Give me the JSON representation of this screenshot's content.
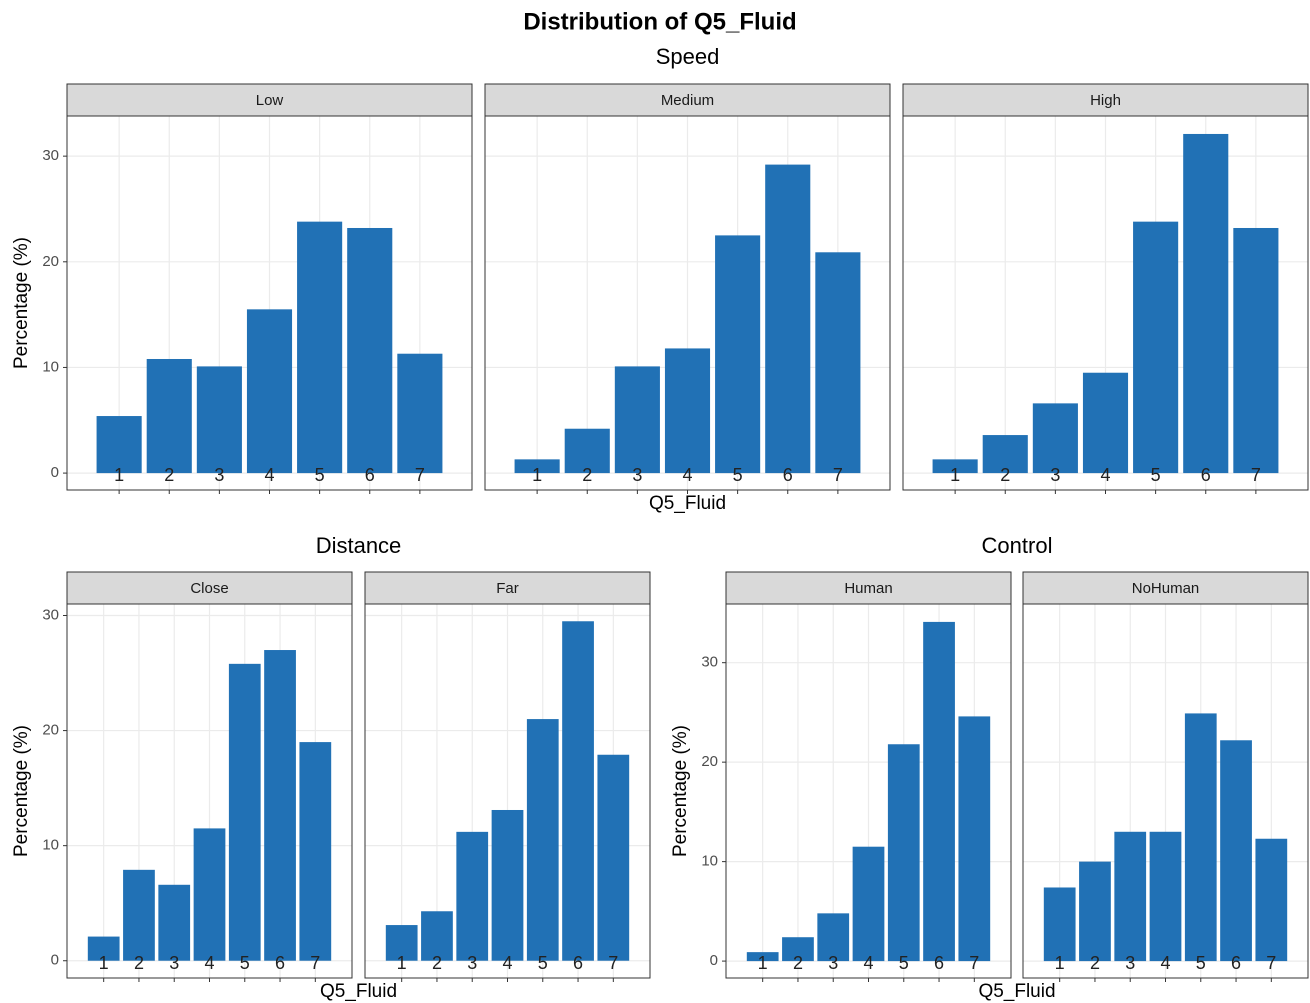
{
  "title": "Distribution of Q5_Fluid",
  "chart_data": [
    {
      "type": "bar",
      "title": "Speed",
      "x_label": "Q5_Fluid",
      "y_label": "Percentage (%)",
      "color": "#2171b5",
      "grid": true,
      "categories": [
        "1",
        "2",
        "3",
        "4",
        "5",
        "6",
        "7"
      ],
      "ylim": [
        -1.6,
        33.8
      ],
      "yticks": [
        0,
        10,
        20,
        30
      ],
      "series": [
        {
          "name": "Low",
          "values": [
            5.4,
            10.8,
            10.1,
            15.5,
            23.8,
            23.2,
            11.3
          ]
        },
        {
          "name": "Medium",
          "values": [
            1.3,
            4.2,
            10.1,
            11.8,
            22.5,
            29.2,
            20.9
          ]
        },
        {
          "name": "High",
          "values": [
            1.3,
            3.6,
            6.6,
            9.5,
            23.8,
            32.1,
            23.2
          ]
        }
      ]
    },
    {
      "type": "bar",
      "title": "Distance",
      "x_label": "Q5_Fluid",
      "y_label": "Percentage (%)",
      "color": "#2171b5",
      "grid": true,
      "categories": [
        "1",
        "2",
        "3",
        "4",
        "5",
        "6",
        "7"
      ],
      "ylim": [
        -1.5,
        31.0
      ],
      "yticks": [
        0,
        10,
        20,
        30
      ],
      "series": [
        {
          "name": "Close",
          "values": [
            2.1,
            7.9,
            6.6,
            11.5,
            25.8,
            27.0,
            19.0
          ]
        },
        {
          "name": "Far",
          "values": [
            3.1,
            4.3,
            11.2,
            13.1,
            21.0,
            29.5,
            17.9
          ]
        }
      ]
    },
    {
      "type": "bar",
      "title": "Control",
      "x_label": "Q5_Fluid",
      "y_label": "Percentage (%)",
      "color": "#2171b5",
      "grid": true,
      "categories": [
        "1",
        "2",
        "3",
        "4",
        "5",
        "6",
        "7"
      ],
      "ylim": [
        -1.7,
        35.9
      ],
      "yticks": [
        0,
        10,
        20,
        30
      ],
      "series": [
        {
          "name": "Human",
          "values": [
            0.9,
            2.4,
            4.8,
            11.5,
            21.8,
            34.1,
            24.6
          ]
        },
        {
          "name": "NoHuman",
          "values": [
            7.4,
            10.0,
            13.0,
            13.0,
            24.9,
            22.2,
            12.3
          ]
        }
      ]
    }
  ]
}
